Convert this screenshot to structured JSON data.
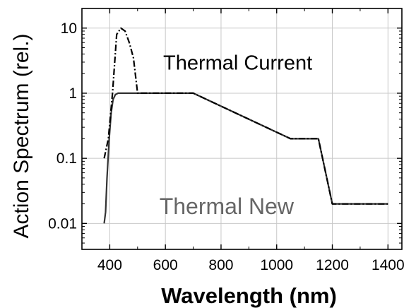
{
  "chart_data": {
    "type": "line",
    "title": "",
    "xlabel": "Wavelength (nm)",
    "ylabel": "Action Spectrum (rel.)",
    "xscale": "linear",
    "yscale": "log",
    "xlim": [
      300,
      1450
    ],
    "ylim": [
      0.004,
      20
    ],
    "grid": true,
    "x_ticks": [
      400,
      600,
      800,
      1000,
      1200,
      1400
    ],
    "x_tick_labels": [
      "400",
      "600",
      "800",
      "1000",
      "1200",
      "1400"
    ],
    "y_ticks": [
      0.01,
      0.1,
      1,
      10
    ],
    "y_tick_labels": [
      "0.01",
      "0.1",
      "1",
      "10"
    ],
    "series": [
      {
        "name": "Thermal Current",
        "style": "dash-dot",
        "color": "#000000",
        "points": [
          [
            380,
            0.1
          ],
          [
            395,
            0.2
          ],
          [
            410,
            1.0
          ],
          [
            425,
            8.0
          ],
          [
            440,
            10.0
          ],
          [
            455,
            9.0
          ],
          [
            470,
            6.0
          ],
          [
            485,
            3.5
          ],
          [
            500,
            1.0
          ],
          [
            700,
            1.0
          ],
          [
            1050,
            0.2
          ],
          [
            1150,
            0.2
          ],
          [
            1200,
            0.02
          ],
          [
            1400,
            0.02
          ]
        ]
      },
      {
        "name": "Thermal New",
        "style": "solid",
        "color": "#333333",
        "points": [
          [
            380,
            0.01
          ],
          [
            385,
            0.015
          ],
          [
            390,
            0.05
          ],
          [
            398,
            0.2
          ],
          [
            405,
            0.5
          ],
          [
            412,
            0.8
          ],
          [
            420,
            0.95
          ],
          [
            430,
            1.0
          ],
          [
            700,
            1.0
          ],
          [
            1050,
            0.2
          ],
          [
            1150,
            0.2
          ],
          [
            1200,
            0.02
          ],
          [
            1400,
            0.02
          ]
        ]
      }
    ],
    "annotations": [
      {
        "text": "Thermal Current",
        "x": 860,
        "y": 2.3
      },
      {
        "text": "Thermal New",
        "x": 820,
        "y": 0.014
      }
    ]
  }
}
